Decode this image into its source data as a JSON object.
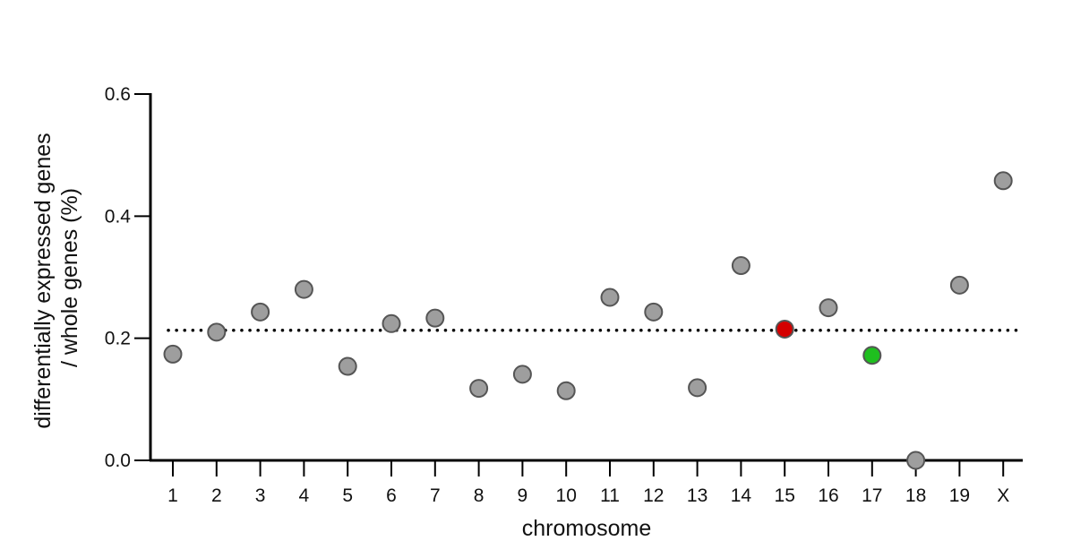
{
  "chart_data": {
    "type": "scatter",
    "title": "",
    "xlabel": "chromosome",
    "ylabel": [
      "differentially expressed genes",
      "/ whole genes (%)"
    ],
    "categories": [
      "1",
      "2",
      "3",
      "4",
      "5",
      "6",
      "7",
      "8",
      "9",
      "10",
      "11",
      "12",
      "13",
      "14",
      "15",
      "16",
      "17",
      "18",
      "19",
      "X"
    ],
    "series": [
      {
        "values": [
          0.174,
          0.21,
          0.243,
          0.28,
          0.154,
          0.224,
          0.233,
          0.118,
          0.141,
          0.114,
          0.267,
          0.243,
          0.119,
          0.319,
          0.215,
          0.25,
          0.172,
          0.0,
          0.287,
          0.458
        ],
        "point_colors": [
          "#9e9e9e",
          "#9e9e9e",
          "#9e9e9e",
          "#9e9e9e",
          "#9e9e9e",
          "#9e9e9e",
          "#9e9e9e",
          "#9e9e9e",
          "#9e9e9e",
          "#9e9e9e",
          "#9e9e9e",
          "#9e9e9e",
          "#9e9e9e",
          "#9e9e9e",
          "#d40000",
          "#9e9e9e",
          "#1fbf1f",
          "#9e9e9e",
          "#9e9e9e",
          "#9e9e9e"
        ]
      }
    ],
    "reference_line": {
      "value": 0.213,
      "style": "dotted"
    },
    "ylim": [
      0,
      0.6
    ],
    "yticks": [
      "0.0",
      "0.2",
      "0.4",
      "0.6"
    ],
    "grid": false,
    "legend": "none"
  },
  "colors": {
    "point_stroke": "#555555",
    "axis": "#000000"
  }
}
